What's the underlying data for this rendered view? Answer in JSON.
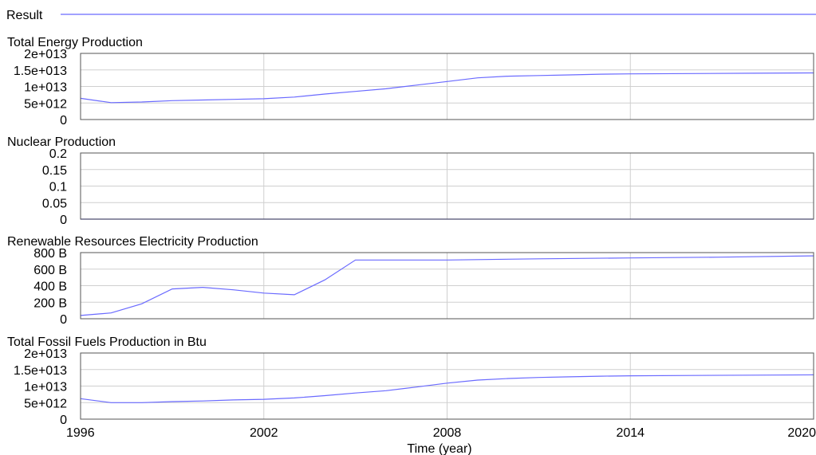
{
  "chart_data": {
    "type": "line",
    "legend": {
      "label": "Result",
      "placement": "top-left",
      "color": "#6a6aff"
    },
    "x": {
      "label": "Time (year)",
      "range": [
        1996,
        2020
      ],
      "ticks": [
        "1996",
        "2002",
        "2008",
        "2014",
        "2020"
      ],
      "grid": true
    },
    "panels": [
      {
        "title": "Total Energy Production",
        "yrange": [
          0,
          20000000000000.0
        ],
        "yticks": [
          "2e+013",
          "1.5e+013",
          "1e+013",
          "5e+012",
          "0"
        ],
        "series": [
          {
            "name": "Result",
            "color": "#6a6aff",
            "points": [
              [
                1996,
                6400000000000.0
              ],
              [
                1997,
                5100000000000.0
              ],
              [
                1998,
                5300000000000.0
              ],
              [
                1999,
                5700000000000.0
              ],
              [
                2000,
                5900000000000.0
              ],
              [
                2001,
                6100000000000.0
              ],
              [
                2002,
                6300000000000.0
              ],
              [
                2003,
                6800000000000.0
              ],
              [
                2004,
                7700000000000.0
              ],
              [
                2005,
                8500000000000.0
              ],
              [
                2006,
                9300000000000.0
              ],
              [
                2007,
                10400000000000.0
              ],
              [
                2008,
                11500000000000.0
              ],
              [
                2009,
                12600000000000.0
              ],
              [
                2010,
                13100000000000.0
              ],
              [
                2011,
                13300000000000.0
              ],
              [
                2012,
                13500000000000.0
              ],
              [
                2013,
                13700000000000.0
              ],
              [
                2014,
                13800000000000.0
              ],
              [
                2016,
                13900000000000.0
              ],
              [
                2018,
                14000000000000.0
              ],
              [
                2020,
                14100000000000.0
              ]
            ]
          }
        ]
      },
      {
        "title": "Nuclear Production",
        "yrange": [
          0,
          0.2
        ],
        "yticks": [
          "0.2",
          "0.15",
          "0.1",
          "0.05",
          "0"
        ],
        "series": [
          {
            "name": "Result",
            "color": "#2b2bd6",
            "points": [
              [
                1996,
                0
              ],
              [
                2020,
                0
              ]
            ]
          }
        ]
      },
      {
        "title": "Renewable Resources Electricity Production",
        "yrange": [
          0,
          800
        ],
        "yticks": [
          "800 B",
          "600 B",
          "400 B",
          "200 B",
          "0"
        ],
        "series": [
          {
            "name": "Result",
            "color": "#6a6aff",
            "points": [
              [
                1996,
                40
              ],
              [
                1997,
                70
              ],
              [
                1998,
                180
              ],
              [
                1999,
                360
              ],
              [
                2000,
                380
              ],
              [
                2001,
                350
              ],
              [
                2002,
                310
              ],
              [
                2003,
                290
              ],
              [
                2004,
                470
              ],
              [
                2005,
                710
              ],
              [
                2008,
                710
              ],
              [
                2011,
                725
              ],
              [
                2014,
                735
              ],
              [
                2017,
                745
              ],
              [
                2020,
                760
              ]
            ]
          }
        ]
      },
      {
        "title": "Total Fossil Fuels Production in Btu",
        "yrange": [
          0,
          20000000000000.0
        ],
        "yticks": [
          "2e+013",
          "1.5e+013",
          "1e+013",
          "5e+012",
          "0"
        ],
        "series": [
          {
            "name": "Result",
            "color": "#6a6aff",
            "points": [
              [
                1996,
                6200000000000.0
              ],
              [
                1997,
                5000000000000.0
              ],
              [
                1998,
                5000000000000.0
              ],
              [
                1999,
                5300000000000.0
              ],
              [
                2000,
                5500000000000.0
              ],
              [
                2001,
                5800000000000.0
              ],
              [
                2002,
                6000000000000.0
              ],
              [
                2003,
                6400000000000.0
              ],
              [
                2004,
                7100000000000.0
              ],
              [
                2005,
                7900000000000.0
              ],
              [
                2006,
                8600000000000.0
              ],
              [
                2007,
                9700000000000.0
              ],
              [
                2008,
                10900000000000.0
              ],
              [
                2009,
                11800000000000.0
              ],
              [
                2010,
                12300000000000.0
              ],
              [
                2011,
                12600000000000.0
              ],
              [
                2012,
                12800000000000.0
              ],
              [
                2013,
                13000000000000.0
              ],
              [
                2014,
                13100000000000.0
              ],
              [
                2016,
                13200000000000.0
              ],
              [
                2018,
                13300000000000.0
              ],
              [
                2020,
                13400000000000.0
              ]
            ]
          }
        ]
      }
    ]
  }
}
